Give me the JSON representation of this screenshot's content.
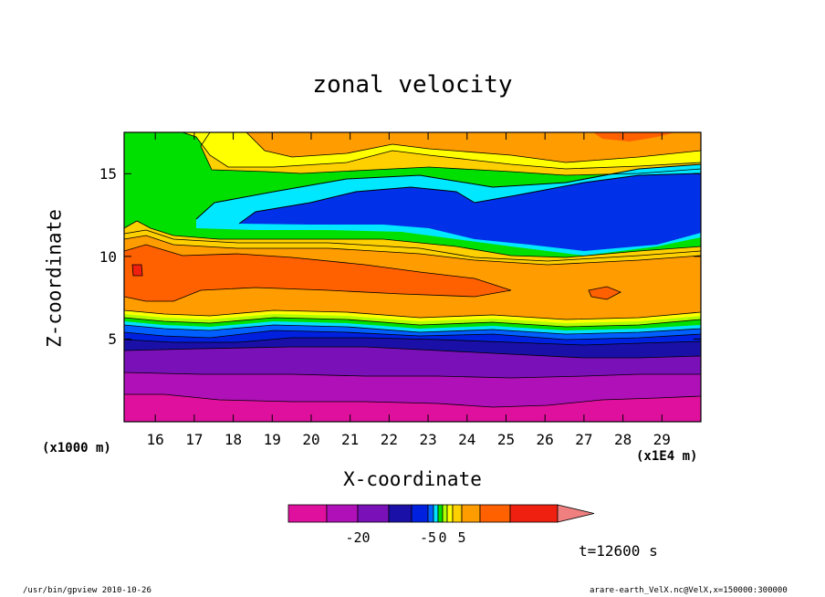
{
  "chart_data": {
    "type": "contour",
    "title": "zonal velocity",
    "xlabel": "X-coordinate",
    "ylabel": "Z-coordinate",
    "x_unit_label": "(x1E4 m)",
    "y_unit_label": "(x1000 m)",
    "xlim": [
      15.2,
      30.0
    ],
    "ylim": [
      0,
      17.5
    ],
    "x_ticks": [
      16,
      17,
      18,
      19,
      20,
      21,
      22,
      23,
      24,
      25,
      26,
      27,
      28,
      29
    ],
    "y_ticks": [
      5,
      10,
      15
    ],
    "bands": [
      {
        "z_bottom": 0.0,
        "z_top": 1.5,
        "value_range": [
          -30,
          -25
        ],
        "color": "#e0109e"
      },
      {
        "z_bottom": 1.5,
        "z_top": 2.8,
        "value_range": [
          -25,
          -20
        ],
        "color": "#b010b8"
      },
      {
        "z_bottom": 2.8,
        "z_top": 4.2,
        "value_range": [
          -20,
          -15
        ],
        "color": "#7a10b8"
      },
      {
        "z_bottom": 4.2,
        "z_top": 5.0,
        "value_range": [
          -15,
          -10
        ],
        "color": "#1a10a8"
      },
      {
        "z_bottom": 5.0,
        "z_top": 5.6,
        "value_range": [
          -10,
          -5
        ],
        "color": "#0020e0"
      },
      {
        "z_bottom": 5.6,
        "z_top": 6.0,
        "value_range": [
          -5,
          -3
        ],
        "color": "#0060ff"
      },
      {
        "z_bottom": 6.0,
        "z_top": 6.3,
        "value_range": [
          -3,
          -1
        ],
        "color": "#00e0ff"
      },
      {
        "z_bottom": 6.3,
        "z_top": 6.6,
        "value_range": [
          -1,
          0
        ],
        "color": "#00e000"
      },
      {
        "z_bottom": 6.6,
        "z_top": 6.9,
        "value_range": [
          0,
          1
        ],
        "color": "#b0ff00"
      },
      {
        "z_bottom": 6.9,
        "z_top": 7.2,
        "value_range": [
          1,
          3
        ],
        "color": "#ffff00"
      },
      {
        "z_bottom": 7.2,
        "z_top": 10.8,
        "value_range": [
          5,
          10
        ],
        "color": "#ff9c00"
      },
      {
        "z_bottom": 10.8,
        "z_top": 11.6,
        "value_range": [
          1,
          5
        ],
        "color": "#ffd000"
      },
      {
        "z_bottom": 11.6,
        "z_top": 17.5,
        "value_range": [
          -1,
          0
        ],
        "color": "#00e000"
      }
    ],
    "features": [
      {
        "name": "strong eastward core",
        "value_range": [
          10,
          15
        ],
        "color": "#ff6000",
        "x_center": 20.5,
        "z_center": 8.8
      },
      {
        "name": "strongest patch",
        "value_range": [
          15,
          20
        ],
        "color": "#f02010",
        "x_center": 15.5,
        "z_center": 9.5
      },
      {
        "name": "upper westward jet",
        "value_range": [
          -10,
          -5
        ],
        "color": "#0030e8",
        "x_center": 24.0,
        "z_center": 13.0
      },
      {
        "name": "upper cyan shell",
        "value_range": [
          -5,
          -3
        ],
        "color": "#00e8ff",
        "x_center": 24.0,
        "z_center": 13.5
      },
      {
        "name": "upper easterly band",
        "value_range": [
          3,
          10
        ],
        "color": "#ff9c00",
        "x_center": 25.0,
        "z_center": 16.8
      },
      {
        "name": "upper yellow band",
        "value_range": [
          1,
          3
        ],
        "color": "#ffff00",
        "x_center": 19.0,
        "z_center": 16.3
      }
    ],
    "colorbar": {
      "colors": [
        "#e0109e",
        "#b010b8",
        "#7a10b8",
        "#1a10a8",
        "#0020e0",
        "#0060ff",
        "#00e0ff",
        "#00e000",
        "#b0ff00",
        "#ffff00",
        "#ffd000",
        "#ff9c00",
        "#ff6000",
        "#f02010",
        "#f08080"
      ],
      "widths": [
        42,
        34,
        34,
        25,
        18,
        6,
        5,
        5,
        5,
        6,
        10,
        20,
        33,
        52,
        0
      ],
      "tick_labels": [
        "-20",
        "-5",
        "0",
        "5"
      ],
      "extend": "max"
    },
    "annotation_time": "t=12600 s"
  },
  "footer": {
    "left": "/usr/bin/gpview   2010-10-26",
    "right": "arare-earth_VelX.nc@VelX,x=150000:300000"
  }
}
